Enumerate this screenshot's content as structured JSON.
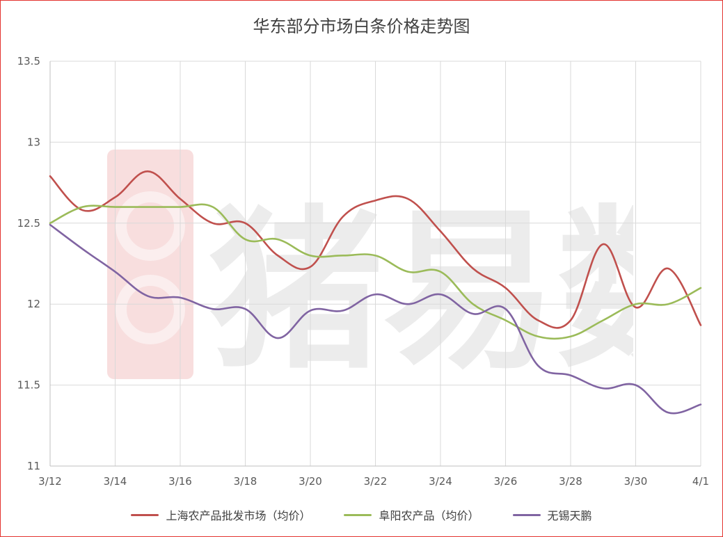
{
  "chart_data": {
    "type": "line",
    "title": "华东部分市场白条价格走势图",
    "xlabel": "",
    "ylabel": "",
    "x": [
      "3/12",
      "3/13",
      "3/14",
      "3/15",
      "3/16",
      "3/17",
      "3/18",
      "3/19",
      "3/20",
      "3/21",
      "3/22",
      "3/23",
      "3/24",
      "3/25",
      "3/26",
      "3/27",
      "3/28",
      "3/29",
      "3/30",
      "3/31",
      "4/1"
    ],
    "x_tick_labels": [
      "3/12",
      "3/14",
      "3/16",
      "3/18",
      "3/20",
      "3/22",
      "3/24",
      "3/26",
      "3/28",
      "3/30",
      "4/1"
    ],
    "ylim": [
      11,
      13.5
    ],
    "y_ticks": [
      "11",
      "11.5",
      "12",
      "12.5",
      "13",
      "13.5"
    ],
    "grid": true,
    "legend_position": "bottom",
    "series": [
      {
        "name": "上海农产品批发市场（均价）",
        "color": "#c0504d",
        "values": [
          12.79,
          12.58,
          12.66,
          12.82,
          12.65,
          12.5,
          12.5,
          12.3,
          12.23,
          12.54,
          12.64,
          12.65,
          12.45,
          12.22,
          12.1,
          11.9,
          11.9,
          12.37,
          11.98,
          12.22,
          11.87
        ]
      },
      {
        "name": "阜阳农产品（均价）",
        "color": "#9bbb59",
        "values": [
          12.5,
          12.6,
          12.6,
          12.6,
          12.6,
          12.6,
          12.4,
          12.4,
          12.3,
          12.3,
          12.3,
          12.2,
          12.2,
          12.0,
          11.9,
          11.8,
          11.8,
          11.9,
          12.0,
          12.0,
          12.1
        ]
      },
      {
        "name": "无锡天鹏",
        "color": "#8064a2",
        "values": [
          12.49,
          12.34,
          12.2,
          12.05,
          12.04,
          11.97,
          11.97,
          11.79,
          11.96,
          11.96,
          12.06,
          12.0,
          12.06,
          11.94,
          11.97,
          11.62,
          11.56,
          11.48,
          11.5,
          11.33,
          11.38
        ]
      }
    ]
  },
  "watermark": {
    "text": "猪易数据",
    "logo_icon": "pig-logo-icon",
    "color": "#e8e8e8"
  }
}
